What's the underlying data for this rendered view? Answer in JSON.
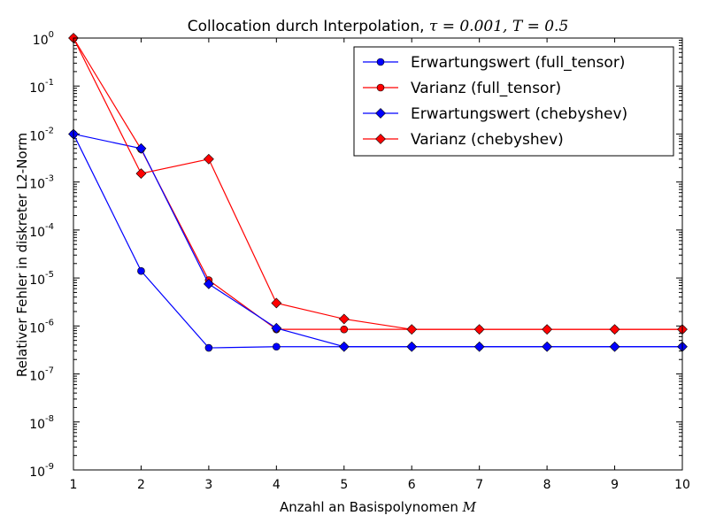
{
  "chart_data": {
    "type": "line",
    "title_text": "Collocation durch Interpolation, ",
    "title_math": "τ = 0.001, T = 0.5",
    "xlabel_text": "Anzahl an Basispolynomen ",
    "xlabel_math": "M",
    "ylabel": "Relativer Fehler in diskreter L2-Norm",
    "yscale": "log",
    "xlim": [
      1,
      10
    ],
    "ylim": [
      1e-09,
      1
    ],
    "x_ticks": [
      1,
      2,
      3,
      4,
      5,
      6,
      7,
      8,
      9,
      10
    ],
    "y_ticks": [
      {
        "value": 1.0,
        "base": "10",
        "exp": "0"
      },
      {
        "value": 0.1,
        "base": "10",
        "exp": "-1"
      },
      {
        "value": 0.01,
        "base": "10",
        "exp": "-2"
      },
      {
        "value": 0.001,
        "base": "10",
        "exp": "-3"
      },
      {
        "value": 0.0001,
        "base": "10",
        "exp": "-4"
      },
      {
        "value": 1e-05,
        "base": "10",
        "exp": "-5"
      },
      {
        "value": 1e-06,
        "base": "10",
        "exp": "-6"
      },
      {
        "value": 1e-07,
        "base": "10",
        "exp": "-7"
      },
      {
        "value": 1e-08,
        "base": "10",
        "exp": "-8"
      },
      {
        "value": 1e-09,
        "base": "10",
        "exp": "-9"
      }
    ],
    "grid": false,
    "legend_position": "top-right",
    "x": [
      1,
      2,
      3,
      4,
      5,
      6,
      7,
      8,
      9,
      10
    ],
    "series": [
      {
        "name": "Erwartungswert (full_tensor)",
        "color": "#0000ff",
        "marker": "circle",
        "values": [
          0.01,
          1.4e-05,
          3.5e-07,
          3.7e-07,
          3.7e-07,
          3.7e-07,
          3.7e-07,
          3.7e-07,
          3.7e-07,
          3.7e-07
        ]
      },
      {
        "name": "Varianz (full_tensor)",
        "color": "#ff0000",
        "marker": "circle",
        "values": [
          1.0,
          0.0048,
          9e-06,
          8.5e-07,
          8.5e-07,
          8.5e-07,
          8.5e-07,
          8.5e-07,
          8.5e-07,
          8.5e-07
        ]
      },
      {
        "name": "Erwartungswert (chebyshev)",
        "color": "#0000ff",
        "marker": "diamond",
        "values": [
          0.01,
          0.005,
          7.5e-06,
          9e-07,
          3.7e-07,
          3.7e-07,
          3.7e-07,
          3.7e-07,
          3.7e-07,
          3.7e-07
        ]
      },
      {
        "name": "Varianz (chebyshev)",
        "color": "#ff0000",
        "marker": "diamond",
        "values": [
          1.0,
          0.0015,
          0.003,
          3e-06,
          1.4e-06,
          8.5e-07,
          8.5e-07,
          8.5e-07,
          8.5e-07,
          8.5e-07
        ]
      }
    ]
  }
}
